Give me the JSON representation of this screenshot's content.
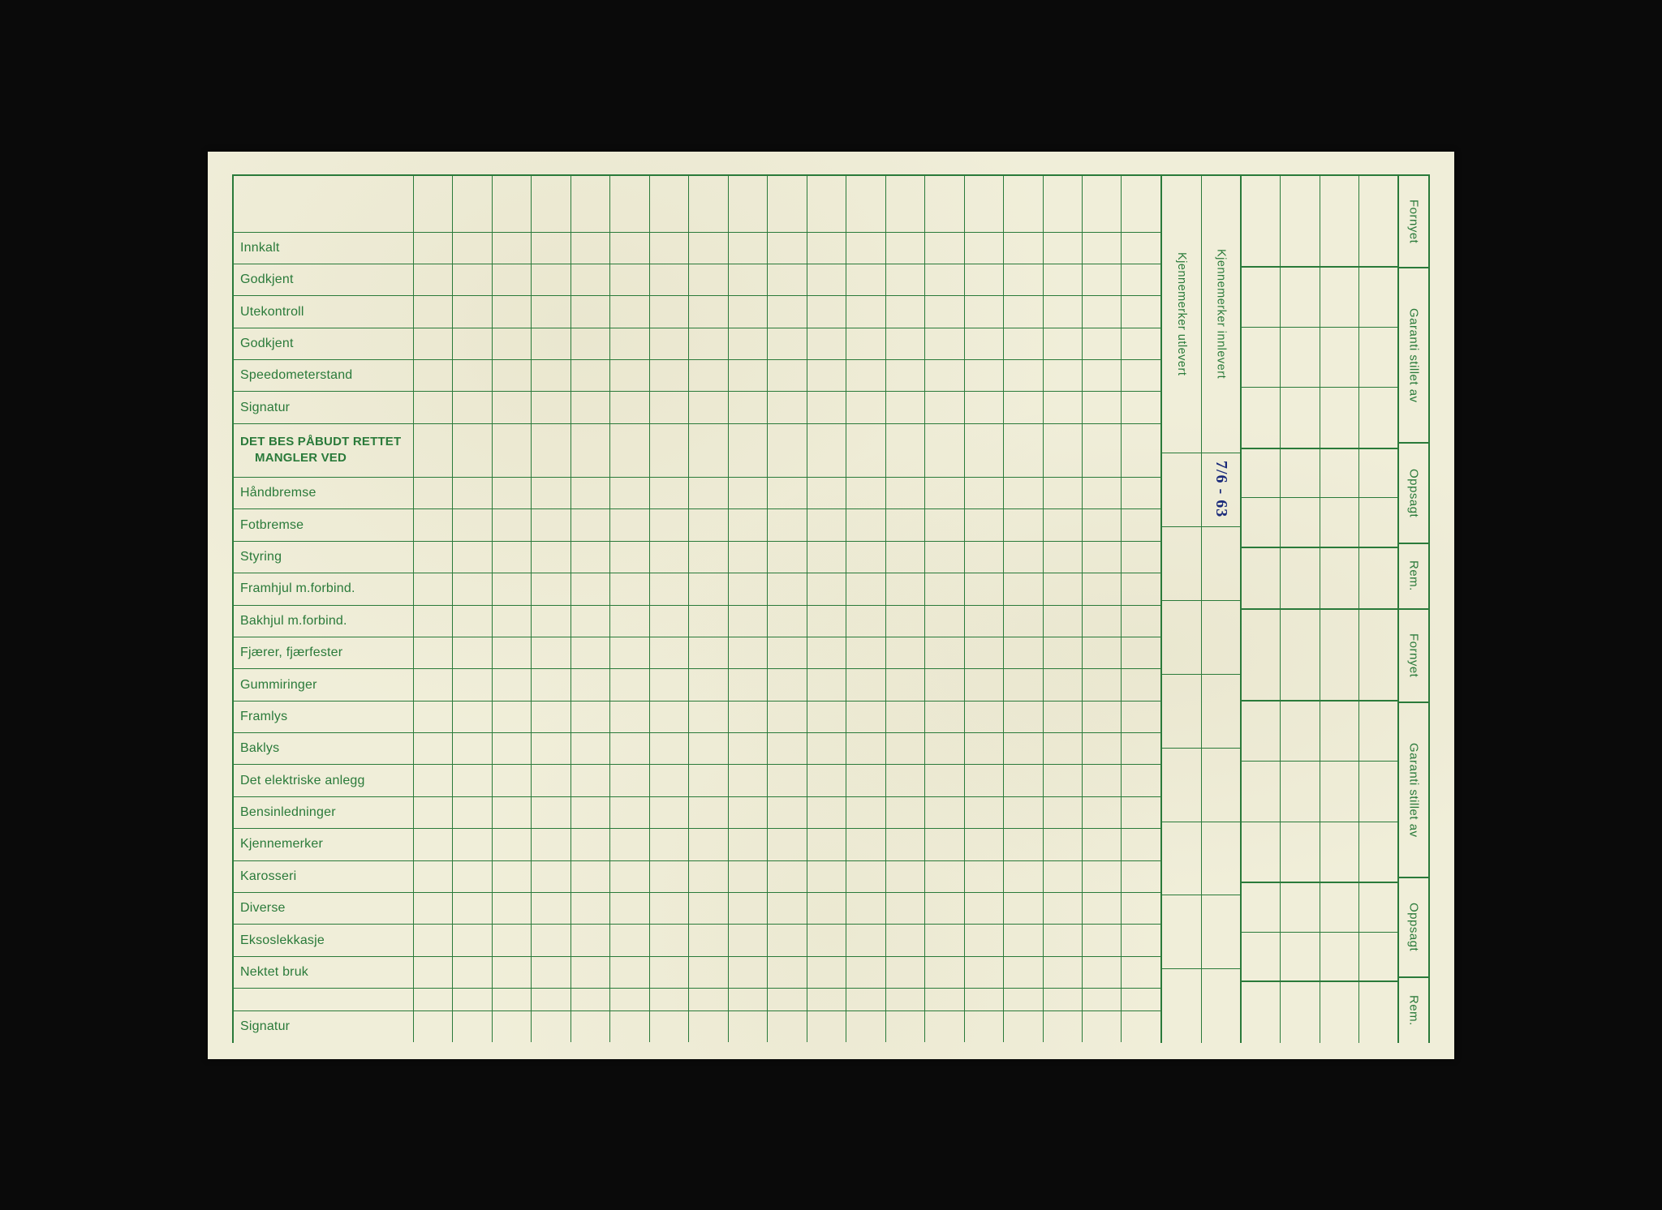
{
  "rows": {
    "innkalt": "Innkalt",
    "godkjent1": "Godkjent",
    "utekontroll": "Utekontroll",
    "godkjent2": "Godkjent",
    "speedometer": "Speedometerstand",
    "signatur1": "Signatur",
    "heading_line1": "DET BES PÅBUDT RETTET",
    "heading_line2": "MANGLER VED",
    "handbremse": "Håndbremse",
    "fotbremse": "Fotbremse",
    "styring": "Styring",
    "framhjul": "Framhjul m.forbind.",
    "bakhjul": "Bakhjul m.forbind.",
    "fjaerer": "Fjærer, fjærfester",
    "gummiringer": "Gummiringer",
    "framlys": "Framlys",
    "baklys": "Baklys",
    "elektrisk": "Det elektriske anlegg",
    "bensin": "Bensinledninger",
    "kjennemerker": "Kjennemerker",
    "karosseri": "Karosseri",
    "diverse": "Diverse",
    "eksos": "Eksoslekkasje",
    "nektet": "Nektet bruk",
    "signatur2": "Signatur"
  },
  "mid_columns": {
    "utlevert": "Kjennemerker utlevert",
    "innlevert": "Kjennemerker innlevert"
  },
  "handwritten_date": "7/6 - 63",
  "right_labels": {
    "fornyet": "Fornyet",
    "garanti": "Garanti stillet av",
    "oppsagt": "Oppsagt",
    "rem": "Rem."
  },
  "style": {
    "grid_columns": 19,
    "line_color": "#2a7a3a",
    "paper_color": "#f0eed9",
    "ink_color": "#1a2a7a",
    "text_color": "#2a7a3a",
    "label_fontsize": 16,
    "vlabel_fontsize": 15,
    "border_width_outer": 2.5,
    "border_width_inner": 1.5,
    "right_grid_columns": 4
  }
}
